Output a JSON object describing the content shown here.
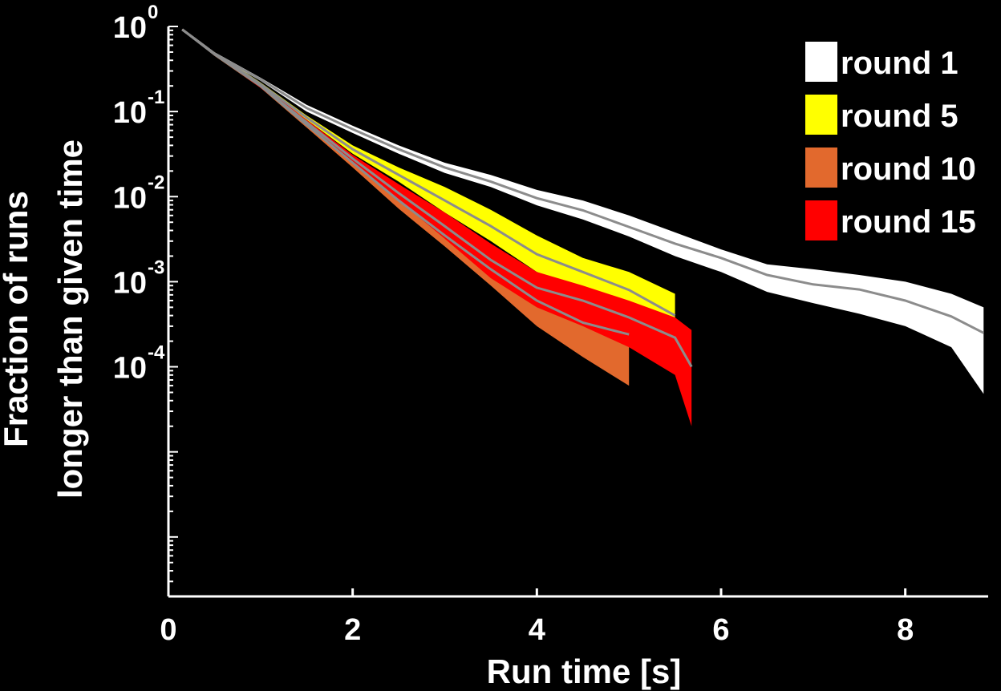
{
  "chart_data": {
    "type": "area",
    "title": "",
    "xlabel": "Run time [s]",
    "ylabel_lines": [
      "Fraction of runs",
      "longer than given time"
    ],
    "xlim": [
      0,
      8.9
    ],
    "ylim": [
      2e-07,
      1
    ],
    "yscale": "log",
    "x_ticks": [
      0,
      2,
      4,
      6,
      8
    ],
    "x_tick_labels": [
      "0",
      "2",
      "4",
      "6",
      "8"
    ],
    "y_ticks": [
      {
        "value": 1,
        "base": "10",
        "exp": "0"
      },
      {
        "value": 0.1,
        "base": "10",
        "exp": "-1"
      },
      {
        "value": 0.01,
        "base": "10",
        "exp": "-2"
      },
      {
        "value": 0.001,
        "base": "10",
        "exp": "-3"
      },
      {
        "value": 0.0001,
        "base": "10",
        "exp": "-4"
      }
    ],
    "grid": false,
    "legend_position": "top-right",
    "mean_line_color": "#8c8c8c",
    "series": [
      {
        "name": "round 1",
        "color": "#ffffff",
        "x": [
          0.15,
          0.5,
          1.0,
          1.5,
          2.0,
          2.5,
          3.0,
          3.5,
          4.0,
          4.5,
          5.0,
          5.5,
          6.0,
          6.5,
          7.0,
          7.5,
          8.0,
          8.5,
          8.85
        ],
        "mean": [
          0.92,
          0.48,
          0.24,
          0.11,
          0.062,
          0.036,
          0.022,
          0.015,
          0.0096,
          0.0069,
          0.0044,
          0.0028,
          0.0019,
          0.0012,
          0.00093,
          0.00081,
          0.0006,
          0.00039,
          0.00025
        ],
        "upper": [
          0.93,
          0.5,
          0.25,
          0.12,
          0.068,
          0.04,
          0.025,
          0.018,
          0.012,
          0.009,
          0.006,
          0.0038,
          0.0024,
          0.0016,
          0.0014,
          0.0012,
          0.001,
          0.00072,
          0.0005
        ],
        "lower": [
          0.91,
          0.46,
          0.23,
          0.1,
          0.056,
          0.032,
          0.019,
          0.013,
          0.0079,
          0.0054,
          0.0034,
          0.002,
          0.0013,
          0.00076,
          0.00056,
          0.00042,
          0.0003,
          0.00017,
          4.8e-05
        ]
      },
      {
        "name": "round 5",
        "color": "#ffff00",
        "x": [
          0.15,
          0.5,
          1.0,
          1.5,
          2.0,
          2.5,
          3.0,
          3.5,
          4.0,
          4.5,
          5.0,
          5.5
        ],
        "mean": [
          0.92,
          0.48,
          0.21,
          0.085,
          0.036,
          0.018,
          0.009,
          0.0045,
          0.0021,
          0.0013,
          0.0008,
          0.0004
        ],
        "upper": [
          0.93,
          0.5,
          0.22,
          0.09,
          0.04,
          0.022,
          0.013,
          0.007,
          0.0035,
          0.0019,
          0.0013,
          0.00072
        ],
        "lower": [
          0.91,
          0.46,
          0.2,
          0.08,
          0.032,
          0.015,
          0.0065,
          0.003,
          0.0013,
          0.0008,
          0.00045,
          9e-05
        ]
      },
      {
        "name": "round 10",
        "color": "#e2692d",
        "x": [
          0.15,
          0.5,
          1.0,
          1.5,
          2.0,
          2.5,
          3.0,
          3.5,
          4.0,
          4.5,
          5.0
        ],
        "mean": [
          0.92,
          0.47,
          0.2,
          0.07,
          0.025,
          0.009,
          0.0035,
          0.0014,
          0.0006,
          0.00033,
          0.00024
        ],
        "upper": [
          0.93,
          0.49,
          0.21,
          0.075,
          0.028,
          0.011,
          0.0045,
          0.002,
          0.001,
          0.0006,
          0.0004
        ],
        "lower": [
          0.91,
          0.45,
          0.19,
          0.065,
          0.022,
          0.0072,
          0.0026,
          0.0009,
          0.0003,
          0.00013,
          6e-05
        ]
      },
      {
        "name": "round 15",
        "color": "#ff0000",
        "x": [
          0.15,
          0.5,
          1.0,
          1.5,
          2.0,
          2.5,
          3.0,
          3.5,
          4.0,
          4.5,
          5.0,
          5.5,
          5.68
        ],
        "mean": [
          0.92,
          0.48,
          0.2,
          0.075,
          0.028,
          0.011,
          0.0045,
          0.0018,
          0.00085,
          0.0006,
          0.00038,
          0.00022,
          0.0001
        ],
        "upper": [
          0.93,
          0.5,
          0.21,
          0.08,
          0.031,
          0.014,
          0.0065,
          0.0028,
          0.0013,
          0.0009,
          0.0006,
          0.00038,
          0.00027
        ],
        "lower": [
          0.91,
          0.46,
          0.19,
          0.07,
          0.025,
          0.009,
          0.0032,
          0.0011,
          0.0005,
          0.0003,
          0.00017,
          8e-05,
          2e-05
        ]
      }
    ]
  }
}
